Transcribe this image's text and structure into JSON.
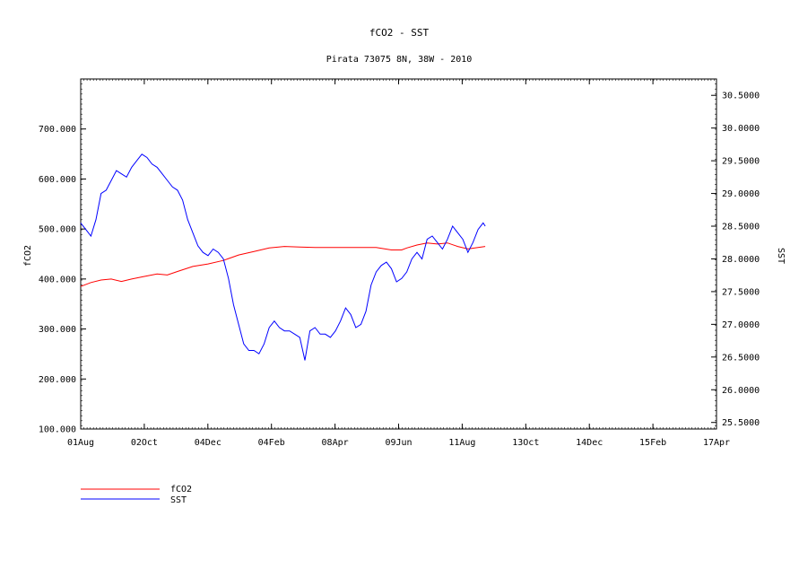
{
  "chart_data": {
    "type": "line",
    "title": "fCO2 - SST",
    "subtitle": "Pirata 73075 8N, 38W - 2010",
    "x_ticks": [
      "01Aug",
      "02Oct",
      "04Dec",
      "04Feb",
      "08Apr",
      "09Jun",
      "11Aug",
      "13Oct",
      "14Dec",
      "15Feb",
      "17Apr"
    ],
    "y_left": {
      "label": "fCO2",
      "ylim": [
        100,
        800
      ],
      "ticks": [
        "100.000",
        "200.000",
        "300.000",
        "400.000",
        "500.000",
        "600.000",
        "700.000"
      ]
    },
    "y_right": {
      "label": "SST",
      "ylim": [
        25.4,
        30.75
      ],
      "ticks": [
        "25.5000",
        "26.0000",
        "26.5000",
        "27.0000",
        "27.5000",
        "28.0000",
        "28.5000",
        "29.0000",
        "29.5000",
        "30.0000",
        "30.5000"
      ]
    },
    "x_units": "days since 01Aug",
    "xlim": [
      0,
      624
    ],
    "grid": false,
    "legend_position": "bottom-left",
    "series": [
      {
        "name": "fCO2",
        "color": "#ff0000",
        "axis": "left",
        "x": [
          0,
          10,
          20,
          30,
          40,
          50,
          62,
          75,
          85,
          95,
          110,
          125,
          140,
          155,
          170,
          185,
          200,
          215,
          230,
          250,
          270,
          290,
          305,
          315,
          320,
          330,
          340,
          350,
          360,
          370,
          380,
          390,
          397
        ],
        "y": [
          385,
          393,
          398,
          400,
          395,
          400,
          405,
          410,
          408,
          415,
          425,
          430,
          437,
          448,
          455,
          462,
          465,
          464,
          463,
          463,
          463,
          463,
          458,
          458,
          462,
          468,
          472,
          470,
          472,
          465,
          460,
          463,
          465
        ]
      },
      {
        "name": "SST",
        "color": "#0000ff",
        "axis": "right",
        "x": [
          0,
          5,
          10,
          15,
          20,
          25,
          30,
          35,
          40,
          45,
          50,
          55,
          60,
          65,
          70,
          75,
          80,
          85,
          90,
          95,
          100,
          105,
          110,
          115,
          120,
          125,
          130,
          135,
          140,
          145,
          150,
          155,
          160,
          165,
          170,
          175,
          180,
          185,
          190,
          195,
          200,
          205,
          210,
          215,
          220,
          225,
          230,
          235,
          240,
          245,
          250,
          255,
          260,
          265,
          270,
          275,
          280,
          285,
          290,
          295,
          300,
          305,
          310,
          315,
          320,
          325,
          330,
          335,
          340,
          345,
          350,
          355,
          360,
          365,
          370,
          375,
          380,
          385,
          390,
          395,
          397
        ],
        "y": [
          28.55,
          28.45,
          28.35,
          28.6,
          29.0,
          29.05,
          29.2,
          29.35,
          29.3,
          29.25,
          29.4,
          29.5,
          29.6,
          29.55,
          29.45,
          29.4,
          29.3,
          29.2,
          29.1,
          29.05,
          28.9,
          28.6,
          28.4,
          28.2,
          28.1,
          28.05,
          28.15,
          28.1,
          28.0,
          27.7,
          27.3,
          27.0,
          26.7,
          26.6,
          26.6,
          26.55,
          26.7,
          26.95,
          27.05,
          26.95,
          26.9,
          26.9,
          26.85,
          26.8,
          26.45,
          26.9,
          26.95,
          26.85,
          26.85,
          26.8,
          26.9,
          27.05,
          27.25,
          27.15,
          26.95,
          27.0,
          27.2,
          27.6,
          27.8,
          27.9,
          27.95,
          27.85,
          27.65,
          27.7,
          27.8,
          28.0,
          28.1,
          28.0,
          28.3,
          28.35,
          28.25,
          28.15,
          28.3,
          28.5,
          28.4,
          28.3,
          28.1,
          28.25,
          28.45,
          28.55,
          28.5
        ]
      }
    ]
  }
}
